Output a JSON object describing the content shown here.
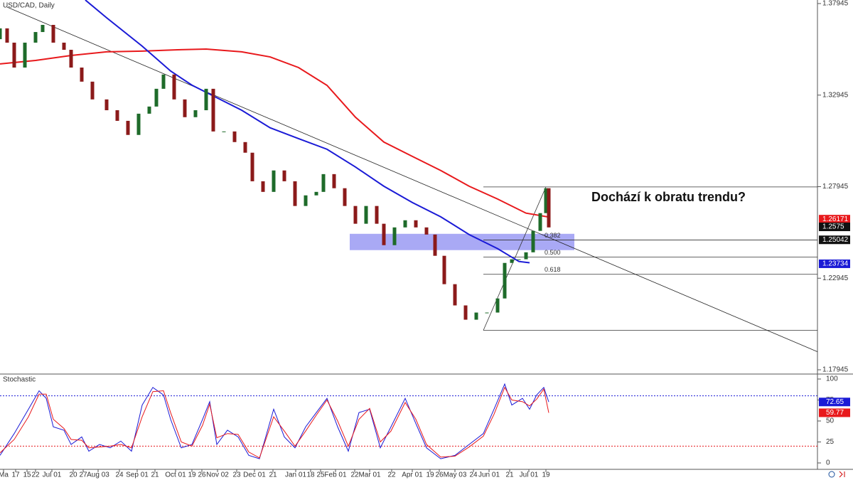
{
  "chart_data": {
    "type": "candlestick",
    "title": "USD/CAD, Daily",
    "annotation": "Dochází k obratu trendu?",
    "xlim": [
      0,
      1150
    ],
    "ylim": [
      1.17945,
      1.37945
    ],
    "yticks": [
      1.37945,
      1.32945,
      1.27945,
      1.22945,
      1.17945
    ],
    "xticks": [
      {
        "value": 5,
        "label": "Ma"
      },
      {
        "value": 22,
        "label": "17"
      },
      {
        "value": 38,
        "label": "15"
      },
      {
        "value": 50,
        "label": "22"
      },
      {
        "value": 73,
        "label": "Jul 01"
      },
      {
        "value": 103,
        "label": "20"
      },
      {
        "value": 117,
        "label": "27"
      },
      {
        "value": 138,
        "label": "Aug 03"
      },
      {
        "value": 168,
        "label": "24"
      },
      {
        "value": 193,
        "label": "Sep 01"
      },
      {
        "value": 218,
        "label": "21"
      },
      {
        "value": 247,
        "label": "Oct 01"
      },
      {
        "value": 270,
        "label": "19"
      },
      {
        "value": 284,
        "label": "26"
      },
      {
        "value": 306,
        "label": "Nov 02"
      },
      {
        "value": 333,
        "label": "23"
      },
      {
        "value": 358,
        "label": "Dec 01"
      },
      {
        "value": 384,
        "label": "21"
      },
      {
        "value": 416,
        "label": "Jan 01"
      },
      {
        "value": 437,
        "label": "18"
      },
      {
        "value": 451,
        "label": "25"
      },
      {
        "value": 472,
        "label": "Feb 01"
      },
      {
        "value": 499,
        "label": "22"
      },
      {
        "value": 520,
        "label": "Mar 01"
      },
      {
        "value": 551,
        "label": "22"
      },
      {
        "value": 580,
        "label": "Apr 01"
      },
      {
        "value": 605,
        "label": "19"
      },
      {
        "value": 618,
        "label": "26"
      },
      {
        "value": 640,
        "label": "May 03"
      },
      {
        "value": 666,
        "label": "24"
      },
      {
        "value": 688,
        "label": "Jun 01"
      },
      {
        "value": 717,
        "label": "21"
      },
      {
        "value": 744,
        "label": "Jul 01"
      },
      {
        "value": 768,
        "label": "19"
      }
    ],
    "up_color": "#1e6b2a",
    "down_color": "#8b1a1a",
    "x": [
      0,
      10,
      20,
      35,
      50,
      60,
      75,
      90,
      100,
      115,
      130,
      150,
      165,
      180,
      195,
      210,
      220,
      230,
      245,
      260,
      275,
      290,
      300,
      315,
      330,
      345,
      355,
      370,
      385,
      400,
      415,
      430,
      445,
      455,
      470,
      485,
      500,
      515,
      530,
      540,
      555,
      570,
      585,
      600,
      612,
      625,
      640,
      655,
      670,
      685,
      700,
      710,
      720,
      730,
      740,
      750,
      760,
      768,
      772
    ],
    "open": [
      1.36,
      1.3659,
      1.3581,
      1.3445,
      1.3581,
      1.3639,
      1.3678,
      1.3581,
      1.3542,
      1.3445,
      1.3368,
      1.3271,
      1.3212,
      1.3154,
      1.3077,
      1.3193,
      1.3232,
      1.3329,
      1.3407,
      1.3271,
      1.3174,
      1.3212,
      1.3329,
      1.3096,
      1.3096,
      1.3038,
      1.298,
      1.2824,
      1.2766,
      1.2883,
      1.2824,
      1.2689,
      1.2747,
      1.2766,
      1.2863,
      1.2786,
      1.2689,
      1.2592,
      1.2689,
      1.2592,
      1.2475,
      1.2572,
      1.2611,
      1.2572,
      1.2533,
      1.2417,
      1.2262,
      1.2146,
      1.2068,
      1.2107,
      1.2107,
      1.2184,
      1.2378,
      1.2398,
      1.2398,
      1.2436,
      1.2553,
      1.265,
      1.2786
    ],
    "close": [
      1.3659,
      1.3581,
      1.3445,
      1.3581,
      1.3639,
      1.3678,
      1.3581,
      1.3542,
      1.3445,
      1.3368,
      1.3271,
      1.3212,
      1.3154,
      1.3077,
      1.3193,
      1.3232,
      1.3329,
      1.3407,
      1.3271,
      1.3174,
      1.3212,
      1.3329,
      1.3096,
      1.3096,
      1.3038,
      1.298,
      1.2824,
      1.2766,
      1.2883,
      1.2824,
      1.2689,
      1.2747,
      1.2766,
      1.2863,
      1.2786,
      1.2689,
      1.2592,
      1.2689,
      1.2592,
      1.2475,
      1.2572,
      1.2611,
      1.2572,
      1.2533,
      1.2417,
      1.2262,
      1.2146,
      1.2068,
      1.2107,
      1.2107,
      1.2184,
      1.2378,
      1.2398,
      1.2398,
      1.2436,
      1.2553,
      1.265,
      1.2786,
      1.2572
    ],
    "moving_averages": [
      {
        "color": "#e8191c",
        "x": [
          0,
          50,
          100,
          150,
          200,
          250,
          290,
          340,
          380,
          420,
          460,
          500,
          540,
          580,
          620,
          660,
          700,
          740,
          770
        ],
        "values": [
          1.3465,
          1.3484,
          1.3511,
          1.3531,
          1.3535,
          1.3542,
          1.3546,
          1.3531,
          1.3503,
          1.3445,
          1.3348,
          1.3174,
          1.3038,
          1.296,
          1.2883,
          1.2797,
          1.2727,
          1.265,
          1.263
        ]
      },
      {
        "color": "#1a1ad6",
        "x": [
          120,
          150,
          200,
          240,
          270,
          300,
          340,
          380,
          420,
          460,
          500,
          540,
          580,
          620,
          660,
          700,
          730,
          745
        ],
        "values": [
          1.3814,
          1.3717,
          1.3562,
          1.3426,
          1.3349,
          1.329,
          1.3212,
          1.3116,
          1.3057,
          1.2999,
          1.2902,
          1.2797,
          1.2708,
          1.263,
          1.2533,
          1.2456,
          1.2386,
          1.2379
        ]
      }
    ],
    "trendline": {
      "x": [
        10,
        1150
      ],
      "values": [
        1.3775,
        1.1893
      ]
    },
    "zone": {
      "x": [
        492,
        808
      ],
      "values": [
        1.2537,
        1.2448
      ],
      "color": "#8c8cf2"
    },
    "fib": {
      "x": [
        680,
        1150
      ],
      "anchor_x": [
        680,
        768
      ],
      "anchor_values": [
        1.201,
        1.2793
      ],
      "levels": [
        1.2793,
        1.201
      ],
      "retracements": [
        {
          "label": "0.382",
          "price": 1.2503
        },
        {
          "label": "0.500",
          "price": 1.241
        },
        {
          "label": "0.618",
          "price": 1.2316
        }
      ]
    },
    "price_labels": [
      {
        "value": 1.26171,
        "color": "#e8191c"
      },
      {
        "value": 1.2575,
        "color": "#111111"
      },
      {
        "value": 1.25042,
        "color": "#111111"
      },
      {
        "value": 1.23734,
        "color": "#1a1ad6"
      }
    ],
    "stochastic": {
      "title": "Stochastic",
      "ylim": [
        0,
        100
      ],
      "yticks": [
        100,
        75,
        50,
        25,
        0
      ],
      "levels": [
        {
          "value": 80,
          "color": "#1a1ad6"
        },
        {
          "value": 20,
          "color": "#e8191c"
        }
      ],
      "x": [
        0,
        20,
        40,
        55,
        65,
        75,
        90,
        100,
        115,
        125,
        140,
        155,
        170,
        185,
        200,
        215,
        230,
        240,
        255,
        270,
        285,
        295,
        305,
        320,
        335,
        350,
        365,
        385,
        400,
        415,
        430,
        445,
        460,
        475,
        490,
        505,
        520,
        535,
        550,
        570,
        585,
        600,
        620,
        640,
        660,
        680,
        695,
        710,
        720,
        735,
        745,
        755,
        765,
        772
      ],
      "series": [
        {
          "color": "#1a1ad6",
          "values": [
            9,
            35,
            64,
            86,
            77,
            43,
            39,
            22,
            31,
            14,
            22,
            18,
            26,
            14,
            69,
            90,
            81,
            52,
            18,
            22,
            52,
            73,
            22,
            39,
            31,
            9,
            5,
            64,
            31,
            18,
            43,
            60,
            77,
            43,
            14,
            60,
            64,
            18,
            43,
            77,
            47,
            18,
            5,
            9,
            22,
            35,
            64,
            94,
            69,
            77,
            64,
            81,
            90,
            72.65
          ]
        },
        {
          "color": "#e8191c",
          "values": [
            12,
            28,
            55,
            82,
            82,
            52,
            41,
            28,
            27,
            18,
            19,
            20,
            22,
            18,
            55,
            85,
            86,
            60,
            25,
            20,
            45,
            70,
            30,
            35,
            34,
            13,
            6,
            55,
            38,
            20,
            38,
            57,
            75,
            50,
            20,
            52,
            65,
            25,
            38,
            72,
            52,
            22,
            7,
            8,
            19,
            32,
            58,
            90,
            75,
            73,
            68,
            76,
            88,
            59.77
          ]
        }
      ]
    }
  }
}
